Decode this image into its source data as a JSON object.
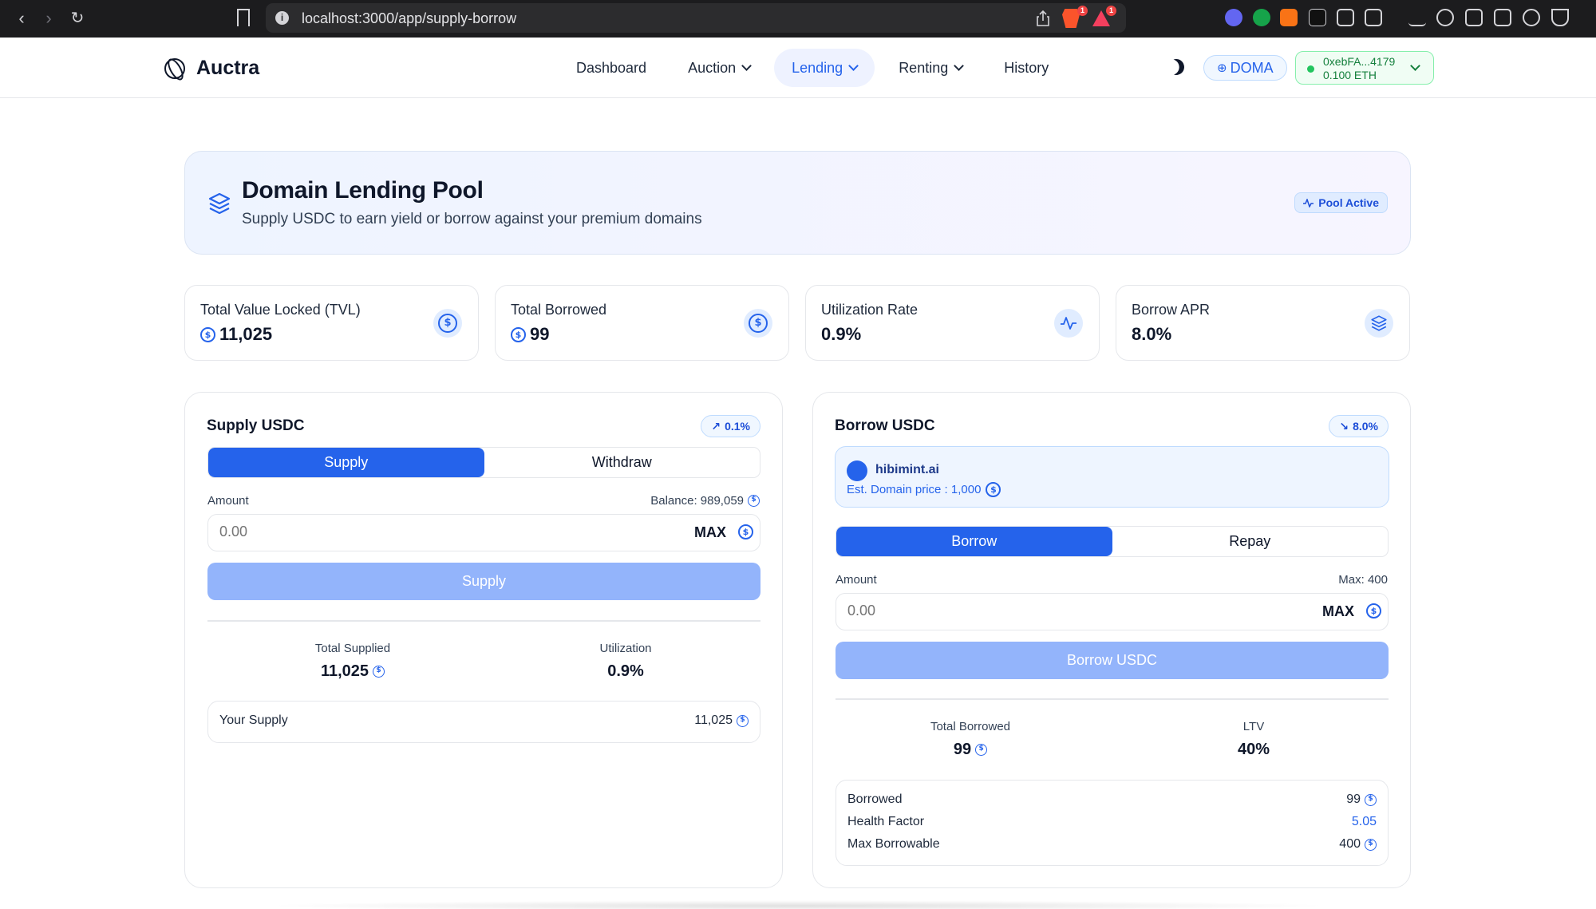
{
  "browser": {
    "url": "localhost:3000/app/supply-borrow",
    "brave_badge": "1",
    "alert_badge": "1"
  },
  "header": {
    "brand": "Auctra",
    "nav": [
      {
        "label": "Dashboard"
      },
      {
        "label": "Auction"
      },
      {
        "label": "Lending"
      },
      {
        "label": "Renting"
      },
      {
        "label": "History"
      }
    ],
    "network_label": "DOMA",
    "wallet_address": "0xebFA...4179",
    "wallet_balance": "0.100 ETH"
  },
  "hero": {
    "title": "Domain Lending Pool",
    "subtitle": "Supply USDC to earn yield or borrow against your premium domains",
    "status": "Pool Active"
  },
  "stats": [
    {
      "label": "Total Value Locked (TVL)",
      "value": "11,025",
      "icon": "usdc-coin-icon"
    },
    {
      "label": "Total Borrowed",
      "value": "99",
      "icon": "usdc-coin-icon"
    },
    {
      "label": "Utilization Rate",
      "value": "0.9%",
      "icon": "activity-icon"
    },
    {
      "label": "Borrow APR",
      "value": "8.0%",
      "icon": "layers-icon"
    }
  ],
  "supply": {
    "title": "Supply USDC",
    "rate": "0.1%",
    "tabs": [
      "Supply",
      "Withdraw"
    ],
    "amount_label": "Amount",
    "balance_label": "Balance: 989,059",
    "amount_value": "",
    "amount_placeholder": "0.00",
    "max_label": "MAX",
    "action_label": "Supply",
    "total_supplied_label": "Total Supplied",
    "total_supplied_value": "11,025",
    "utilization_label": "Utilization",
    "utilization_value": "0.9%",
    "your_supply_label": "Your Supply",
    "your_supply_value": "11,025"
  },
  "borrow": {
    "title": "Borrow USDC",
    "rate": "8.0%",
    "domain_name": "hibimint.ai",
    "domain_price": "Est. Domain price : 1,000",
    "tabs": [
      "Borrow",
      "Repay"
    ],
    "amount_label": "Amount",
    "max_text": "Max: 400",
    "amount_value": "",
    "amount_placeholder": "0.00",
    "max_label": "MAX",
    "action_label": "Borrow USDC",
    "total_borrowed_label": "Total Borrowed",
    "total_borrowed_value": "99",
    "ltv_label": "LTV",
    "ltv_value": "40%",
    "details": [
      {
        "label": "Borrowed",
        "value": "99"
      },
      {
        "label": "Health Factor",
        "value": "5.05"
      },
      {
        "label": "Max Borrowable",
        "value": "400"
      }
    ]
  },
  "colors": {
    "accent": "#2563eb",
    "button_disabled": "#93b4fb",
    "wallet_green": "#22c55e",
    "health_factor": "#2563eb"
  }
}
